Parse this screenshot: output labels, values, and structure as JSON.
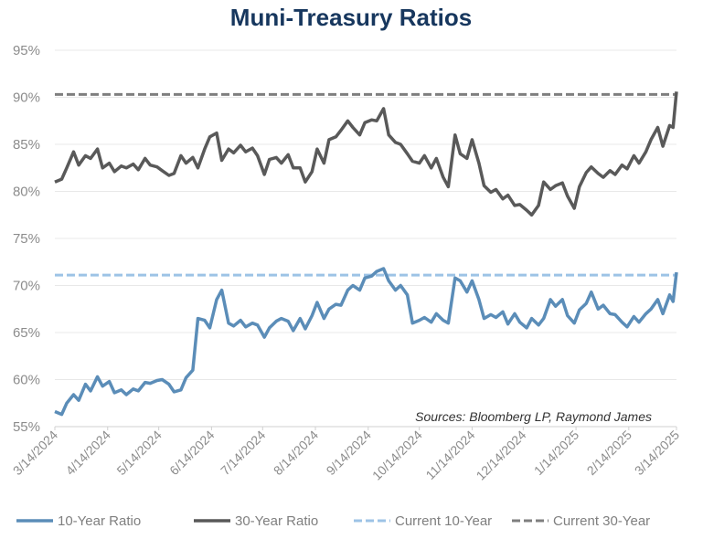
{
  "chart_data": {
    "type": "line",
    "title": "Muni-Treasury Ratios",
    "source_note": "Sources: Bloomberg LP, Raymond James",
    "xlabel": "",
    "ylabel": "",
    "ylim": [
      55,
      95
    ],
    "y_tick_values": [
      55,
      60,
      65,
      70,
      75,
      80,
      85,
      90,
      95
    ],
    "y_tick_labels": [
      "55%",
      "60%",
      "65%",
      "70%",
      "75%",
      "80%",
      "85%",
      "90%",
      "95%"
    ],
    "x_range": [
      "2024-03-14",
      "2025-03-14"
    ],
    "x_tick_values": [
      "2024-03-14",
      "2024-04-14",
      "2024-05-14",
      "2024-06-14",
      "2024-07-14",
      "2024-08-14",
      "2024-09-14",
      "2024-10-14",
      "2024-11-14",
      "2024-12-14",
      "2025-01-14",
      "2025-02-14",
      "2025-03-14"
    ],
    "x_tick_labels": [
      "3/14/2024",
      "4/14/2024",
      "5/14/2024",
      "6/14/2024",
      "7/14/2024",
      "8/14/2024",
      "9/14/2024",
      "10/14/2024",
      "11/14/2024",
      "12/14/2024",
      "1/14/2025",
      "2/14/2025",
      "3/14/2025"
    ],
    "grid": true,
    "legend_position": "bottom",
    "series": [
      {
        "name": "10-Year Ratio",
        "style": "solid",
        "color": "#5b8db8",
        "points": [
          [
            "2024-03-14",
            56.6
          ],
          [
            "2024-03-18",
            56.3
          ],
          [
            "2024-03-21",
            57.5
          ],
          [
            "2024-03-25",
            58.4
          ],
          [
            "2024-03-28",
            57.8
          ],
          [
            "2024-04-01",
            59.5
          ],
          [
            "2024-04-04",
            58.8
          ],
          [
            "2024-04-08",
            60.3
          ],
          [
            "2024-04-11",
            59.3
          ],
          [
            "2024-04-15",
            59.8
          ],
          [
            "2024-04-18",
            58.6
          ],
          [
            "2024-04-22",
            58.9
          ],
          [
            "2024-04-25",
            58.4
          ],
          [
            "2024-04-29",
            59.0
          ],
          [
            "2024-05-02",
            58.8
          ],
          [
            "2024-05-06",
            59.7
          ],
          [
            "2024-05-09",
            59.6
          ],
          [
            "2024-05-13",
            59.9
          ],
          [
            "2024-05-16",
            60.0
          ],
          [
            "2024-05-20",
            59.5
          ],
          [
            "2024-05-23",
            58.7
          ],
          [
            "2024-05-27",
            58.9
          ],
          [
            "2024-05-30",
            60.2
          ],
          [
            "2024-06-03",
            61.0
          ],
          [
            "2024-06-06",
            66.5
          ],
          [
            "2024-06-10",
            66.3
          ],
          [
            "2024-06-13",
            65.5
          ],
          [
            "2024-06-17",
            68.5
          ],
          [
            "2024-06-20",
            69.5
          ],
          [
            "2024-06-24",
            66.0
          ],
          [
            "2024-06-27",
            65.7
          ],
          [
            "2024-07-01",
            66.3
          ],
          [
            "2024-07-04",
            65.6
          ],
          [
            "2024-07-08",
            66.0
          ],
          [
            "2024-07-11",
            65.8
          ],
          [
            "2024-07-15",
            64.5
          ],
          [
            "2024-07-18",
            65.5
          ],
          [
            "2024-07-22",
            66.2
          ],
          [
            "2024-07-25",
            66.5
          ],
          [
            "2024-07-29",
            66.2
          ],
          [
            "2024-08-01",
            65.2
          ],
          [
            "2024-08-05",
            66.5
          ],
          [
            "2024-08-08",
            65.4
          ],
          [
            "2024-08-12",
            66.8
          ],
          [
            "2024-08-15",
            68.2
          ],
          [
            "2024-08-19",
            66.5
          ],
          [
            "2024-08-22",
            67.5
          ],
          [
            "2024-08-26",
            68.0
          ],
          [
            "2024-08-29",
            67.9
          ],
          [
            "2024-09-02",
            69.5
          ],
          [
            "2024-09-05",
            70.0
          ],
          [
            "2024-09-09",
            69.5
          ],
          [
            "2024-09-12",
            70.8
          ],
          [
            "2024-09-16",
            71.0
          ],
          [
            "2024-09-19",
            71.5
          ],
          [
            "2024-09-23",
            71.8
          ],
          [
            "2024-09-26",
            70.5
          ],
          [
            "2024-09-30",
            69.5
          ],
          [
            "2024-10-03",
            70.0
          ],
          [
            "2024-10-07",
            69.0
          ],
          [
            "2024-10-10",
            66.0
          ],
          [
            "2024-10-14",
            66.3
          ],
          [
            "2024-10-17",
            66.6
          ],
          [
            "2024-10-21",
            66.1
          ],
          [
            "2024-10-24",
            67.0
          ],
          [
            "2024-10-28",
            66.3
          ],
          [
            "2024-10-31",
            66.0
          ],
          [
            "2024-11-04",
            70.8
          ],
          [
            "2024-11-07",
            70.5
          ],
          [
            "2024-11-11",
            69.3
          ],
          [
            "2024-11-14",
            70.5
          ],
          [
            "2024-11-18",
            68.5
          ],
          [
            "2024-11-21",
            66.5
          ],
          [
            "2024-11-25",
            66.9
          ],
          [
            "2024-11-28",
            66.6
          ],
          [
            "2024-12-02",
            67.2
          ],
          [
            "2024-12-05",
            65.9
          ],
          [
            "2024-12-09",
            67.0
          ],
          [
            "2024-12-12",
            66.1
          ],
          [
            "2024-12-16",
            65.5
          ],
          [
            "2024-12-19",
            66.5
          ],
          [
            "2024-12-23",
            65.8
          ],
          [
            "2024-12-26",
            66.5
          ],
          [
            "2024-12-30",
            68.5
          ],
          [
            "2025-01-02",
            67.8
          ],
          [
            "2025-01-06",
            68.5
          ],
          [
            "2025-01-09",
            66.8
          ],
          [
            "2025-01-13",
            66.0
          ],
          [
            "2025-01-16",
            67.4
          ],
          [
            "2025-01-20",
            68.1
          ],
          [
            "2025-01-23",
            69.3
          ],
          [
            "2025-01-27",
            67.5
          ],
          [
            "2025-01-30",
            67.9
          ],
          [
            "2025-02-03",
            67.0
          ],
          [
            "2025-02-06",
            66.9
          ],
          [
            "2025-02-10",
            66.1
          ],
          [
            "2025-02-13",
            65.6
          ],
          [
            "2025-02-17",
            66.7
          ],
          [
            "2025-02-20",
            66.1
          ],
          [
            "2025-02-24",
            67.0
          ],
          [
            "2025-02-27",
            67.5
          ],
          [
            "2025-03-03",
            68.5
          ],
          [
            "2025-03-06",
            67.0
          ],
          [
            "2025-03-10",
            69.0
          ],
          [
            "2025-03-12",
            68.3
          ],
          [
            "2025-03-14",
            71.4
          ]
        ]
      },
      {
        "name": "30-Year Ratio",
        "style": "solid",
        "color": "#595959",
        "points": [
          [
            "2024-03-14",
            81.0
          ],
          [
            "2024-03-18",
            81.3
          ],
          [
            "2024-03-21",
            82.5
          ],
          [
            "2024-03-25",
            84.2
          ],
          [
            "2024-03-28",
            82.8
          ],
          [
            "2024-04-01",
            83.8
          ],
          [
            "2024-04-04",
            83.5
          ],
          [
            "2024-04-08",
            84.5
          ],
          [
            "2024-04-11",
            82.5
          ],
          [
            "2024-04-15",
            83.0
          ],
          [
            "2024-04-18",
            82.1
          ],
          [
            "2024-04-22",
            82.7
          ],
          [
            "2024-04-25",
            82.5
          ],
          [
            "2024-04-29",
            82.9
          ],
          [
            "2024-05-02",
            82.3
          ],
          [
            "2024-05-06",
            83.5
          ],
          [
            "2024-05-09",
            82.8
          ],
          [
            "2024-05-13",
            82.6
          ],
          [
            "2024-05-16",
            82.2
          ],
          [
            "2024-05-20",
            81.7
          ],
          [
            "2024-05-23",
            81.9
          ],
          [
            "2024-05-27",
            83.8
          ],
          [
            "2024-05-30",
            83.0
          ],
          [
            "2024-06-03",
            83.6
          ],
          [
            "2024-06-06",
            82.5
          ],
          [
            "2024-06-10",
            84.5
          ],
          [
            "2024-06-13",
            85.8
          ],
          [
            "2024-06-17",
            86.2
          ],
          [
            "2024-06-20",
            83.3
          ],
          [
            "2024-06-24",
            84.5
          ],
          [
            "2024-06-27",
            84.1
          ],
          [
            "2024-07-01",
            84.9
          ],
          [
            "2024-07-04",
            84.2
          ],
          [
            "2024-07-08",
            84.6
          ],
          [
            "2024-07-11",
            83.8
          ],
          [
            "2024-07-15",
            81.8
          ],
          [
            "2024-07-18",
            83.4
          ],
          [
            "2024-07-22",
            83.6
          ],
          [
            "2024-07-25",
            83.0
          ],
          [
            "2024-07-29",
            83.9
          ],
          [
            "2024-08-01",
            82.5
          ],
          [
            "2024-08-05",
            82.5
          ],
          [
            "2024-08-08",
            81.0
          ],
          [
            "2024-08-12",
            82.1
          ],
          [
            "2024-08-15",
            84.5
          ],
          [
            "2024-08-19",
            83.0
          ],
          [
            "2024-08-22",
            85.5
          ],
          [
            "2024-08-26",
            85.8
          ],
          [
            "2024-08-29",
            86.5
          ],
          [
            "2024-09-02",
            87.5
          ],
          [
            "2024-09-05",
            86.8
          ],
          [
            "2024-09-09",
            86.0
          ],
          [
            "2024-09-12",
            87.3
          ],
          [
            "2024-09-16",
            87.6
          ],
          [
            "2024-09-19",
            87.5
          ],
          [
            "2024-09-23",
            88.8
          ],
          [
            "2024-09-26",
            86.0
          ],
          [
            "2024-09-30",
            85.2
          ],
          [
            "2024-10-03",
            85.0
          ],
          [
            "2024-10-07",
            84.0
          ],
          [
            "2024-10-10",
            83.2
          ],
          [
            "2024-10-14",
            83.0
          ],
          [
            "2024-10-17",
            83.8
          ],
          [
            "2024-10-21",
            82.5
          ],
          [
            "2024-10-24",
            83.5
          ],
          [
            "2024-10-28",
            81.5
          ],
          [
            "2024-10-31",
            80.5
          ],
          [
            "2024-11-04",
            86.0
          ],
          [
            "2024-11-07",
            84.0
          ],
          [
            "2024-11-11",
            83.5
          ],
          [
            "2024-11-14",
            85.5
          ],
          [
            "2024-11-18",
            83.0
          ],
          [
            "2024-11-21",
            80.6
          ],
          [
            "2024-11-25",
            79.9
          ],
          [
            "2024-11-28",
            80.2
          ],
          [
            "2024-12-02",
            79.2
          ],
          [
            "2024-12-05",
            79.6
          ],
          [
            "2024-12-09",
            78.5
          ],
          [
            "2024-12-12",
            78.6
          ],
          [
            "2024-12-16",
            78.0
          ],
          [
            "2024-12-19",
            77.5
          ],
          [
            "2024-12-23",
            78.5
          ],
          [
            "2024-12-26",
            81.0
          ],
          [
            "2024-12-30",
            80.2
          ],
          [
            "2025-01-02",
            80.6
          ],
          [
            "2025-01-06",
            80.9
          ],
          [
            "2025-01-09",
            79.5
          ],
          [
            "2025-01-13",
            78.2
          ],
          [
            "2025-01-16",
            80.5
          ],
          [
            "2025-01-20",
            82.0
          ],
          [
            "2025-01-23",
            82.6
          ],
          [
            "2025-01-27",
            81.9
          ],
          [
            "2025-01-30",
            81.5
          ],
          [
            "2025-02-03",
            82.2
          ],
          [
            "2025-02-06",
            81.8
          ],
          [
            "2025-02-10",
            82.8
          ],
          [
            "2025-02-13",
            82.4
          ],
          [
            "2025-02-17",
            83.8
          ],
          [
            "2025-02-20",
            83.0
          ],
          [
            "2025-02-24",
            84.2
          ],
          [
            "2025-02-27",
            85.5
          ],
          [
            "2025-03-03",
            86.8
          ],
          [
            "2025-03-06",
            84.8
          ],
          [
            "2025-03-10",
            87.0
          ],
          [
            "2025-03-12",
            86.8
          ],
          [
            "2025-03-14",
            90.6
          ]
        ]
      },
      {
        "name": "Current 10-Year",
        "style": "dashed",
        "color": "#9dc3e6",
        "value": 71.1
      },
      {
        "name": "Current 30-Year",
        "style": "dashed",
        "color": "#7f7f7f",
        "value": 90.3
      }
    ]
  }
}
